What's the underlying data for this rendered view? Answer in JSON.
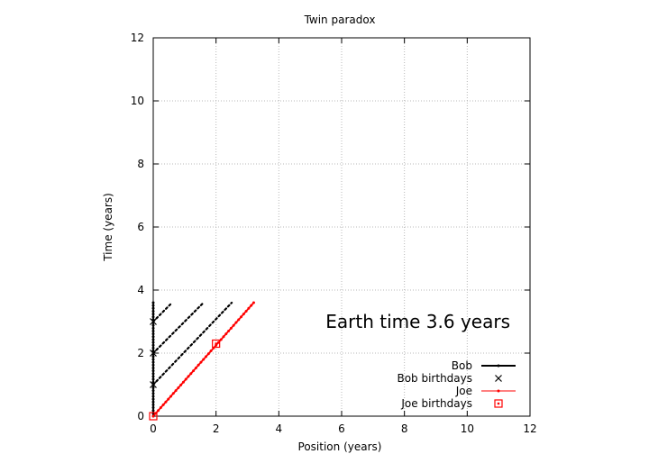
{
  "chart_data": {
    "type": "line",
    "title": "Twin paradox",
    "xlabel": "Position (years)",
    "ylabel": "Time (years)",
    "xlim": [
      0,
      12
    ],
    "ylim": [
      0,
      12
    ],
    "xticks": [
      0,
      2,
      4,
      6,
      8,
      10,
      12
    ],
    "yticks": [
      0,
      2,
      4,
      6,
      8,
      10,
      12
    ],
    "grid": true,
    "legend_position": "bottom-right",
    "annotation": "Earth time  3.6 years",
    "series": [
      {
        "name": "Bob",
        "style": "line",
        "color": "#000000",
        "points": [
          [
            0,
            0
          ],
          [
            0,
            3.6
          ]
        ]
      },
      {
        "name": "Bob birthdays",
        "style": "marker-x",
        "color": "#000000",
        "points": [
          [
            0,
            1
          ],
          [
            0,
            2
          ],
          [
            0,
            3
          ]
        ]
      },
      {
        "name": "Joe",
        "style": "line",
        "color": "#ff0000",
        "points": [
          [
            0,
            0
          ],
          [
            3.2,
            3.6
          ]
        ]
      },
      {
        "name": "Joe birthdays",
        "style": "marker-square",
        "color": "#ff0000",
        "points": [
          [
            0,
            0
          ],
          [
            2.0,
            2.3
          ]
        ]
      }
    ],
    "light_signals": {
      "color": "#000000",
      "style": "dotted",
      "segments": [
        [
          [
            0,
            3
          ],
          [
            0.6,
            3.6
          ]
        ],
        [
          [
            0,
            2
          ],
          [
            1.6,
            3.6
          ]
        ],
        [
          [
            0,
            1
          ],
          [
            2.5,
            3.6
          ]
        ]
      ]
    }
  }
}
